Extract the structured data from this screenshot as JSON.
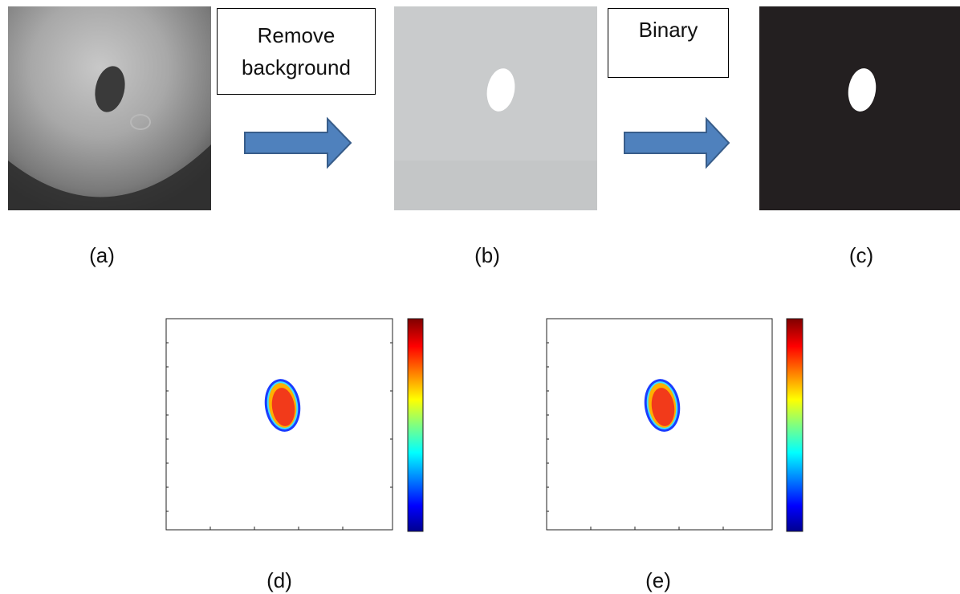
{
  "steps": [
    {
      "label": "Remove background"
    },
    {
      "label": "Binary"
    }
  ],
  "panel_labels": [
    "(a)",
    "(b)",
    "(c)",
    "(d)",
    "(e)"
  ]
}
